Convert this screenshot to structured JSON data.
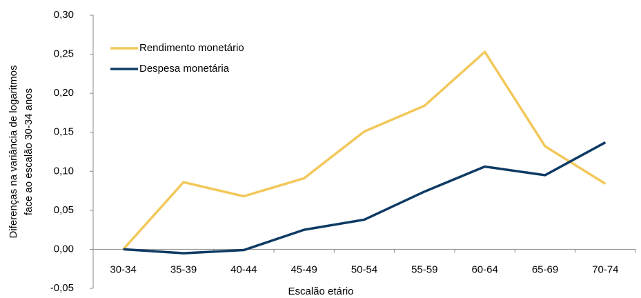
{
  "chart_data": {
    "type": "line",
    "xlabel": "Escalão etário",
    "ylabel": [
      "Diferenças na variância de logaritmos",
      "face ao escalão 30-34 anos"
    ],
    "categories": [
      "30-34",
      "35-39",
      "40-44",
      "45-49",
      "50-54",
      "55-59",
      "60-64",
      "65-69",
      "70-74"
    ],
    "series": [
      {
        "name": "Rendimento monetário",
        "color": "#f2c85b",
        "values": [
          0,
          0.086,
          0.068,
          0.091,
          0.151,
          0.184,
          0.253,
          0.132,
          0.084
        ]
      },
      {
        "name": "Despesa monetária",
        "color": "#0e3a64",
        "values": [
          0,
          -0.005,
          -0.001,
          0.025,
          0.038,
          0.074,
          0.106,
          0.095,
          0.137
        ]
      }
    ],
    "ylim": [
      -0.05,
      0.3
    ],
    "yticks": [
      {
        "value": -0.05,
        "label": "-0,05"
      },
      {
        "value": 0,
        "label": "0,00"
      },
      {
        "value": 0.05,
        "label": "0,05"
      },
      {
        "value": 0.1,
        "label": "0,10"
      },
      {
        "value": 0.15,
        "label": "0,15"
      },
      {
        "value": 0.2,
        "label": "0,20"
      },
      {
        "value": 0.25,
        "label": "0,25"
      },
      {
        "value": 0.3,
        "label": "0,30"
      }
    ],
    "legend": "upper left"
  }
}
